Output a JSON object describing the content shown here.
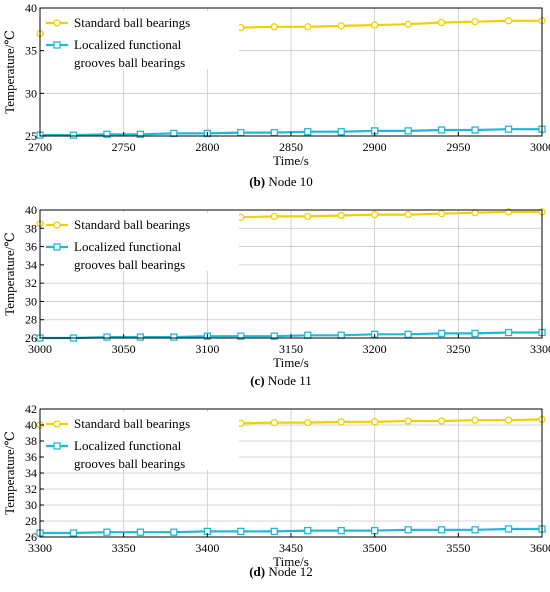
{
  "panels": [
    {
      "caption_prefix": "(b)",
      "caption_text": "Node 10",
      "chart_data": {
        "type": "line",
        "xlabel": "Time/s",
        "ylabel": "Temperature/℃",
        "xlim": [
          2700,
          3000
        ],
        "ylim": [
          25,
          40
        ],
        "xticks": [
          2700,
          2750,
          2800,
          2850,
          2900,
          2950,
          3000
        ],
        "yticks": [
          25,
          30,
          35,
          40
        ],
        "grid": true,
        "legend_position": "top-left",
        "series": [
          {
            "name": "Standard ball bearings",
            "color": "#f0d000",
            "marker": "circle",
            "x": [
              2700,
              2720,
              2740,
              2760,
              2780,
              2800,
              2820,
              2840,
              2860,
              2880,
              2900,
              2920,
              2940,
              2960,
              2980,
              3000
            ],
            "y": [
              37.0,
              37.1,
              37.2,
              37.3,
              37.4,
              37.6,
              37.7,
              37.8,
              37.8,
              37.9,
              38.0,
              38.1,
              38.3,
              38.4,
              38.5,
              38.5
            ]
          },
          {
            "name": "Localized  functional grooves ball bearings",
            "name_line1": "Localized  functional",
            "name_line2": "grooves ball bearings",
            "color": "#20b8d8",
            "marker": "square",
            "x": [
              2700,
              2720,
              2740,
              2760,
              2780,
              2800,
              2820,
              2840,
              2860,
              2880,
              2900,
              2920,
              2940,
              2960,
              2980,
              3000
            ],
            "y": [
              25.1,
              25.1,
              25.2,
              25.2,
              25.3,
              25.3,
              25.4,
              25.4,
              25.5,
              25.5,
              25.6,
              25.6,
              25.7,
              25.7,
              25.8,
              25.8
            ]
          }
        ]
      }
    },
    {
      "caption_prefix": "(c)",
      "caption_text": "Node 11",
      "chart_data": {
        "type": "line",
        "xlabel": "Time/s",
        "ylabel": "Temperature/℃",
        "xlim": [
          3000,
          3300
        ],
        "ylim": [
          26,
          40
        ],
        "xticks": [
          3000,
          3050,
          3100,
          3150,
          3200,
          3250,
          3300
        ],
        "yticks": [
          26,
          28,
          30,
          32,
          34,
          36,
          38,
          40
        ],
        "grid": true,
        "legend_position": "top-left",
        "series": [
          {
            "name": "Standard ball bearings",
            "color": "#f0d000",
            "marker": "circle",
            "x": [
              3000,
              3020,
              3040,
              3060,
              3080,
              3100,
              3120,
              3140,
              3160,
              3180,
              3200,
              3220,
              3240,
              3260,
              3280,
              3300
            ],
            "y": [
              38.5,
              38.6,
              38.7,
              38.9,
              39.0,
              39.1,
              39.2,
              39.3,
              39.3,
              39.4,
              39.5,
              39.5,
              39.6,
              39.7,
              39.8,
              39.8
            ]
          },
          {
            "name": "Localized  functional grooves ball bearings",
            "name_line1": "Localized  functional",
            "name_line2": "grooves ball bearings",
            "color": "#20b8d8",
            "marker": "square",
            "x": [
              3000,
              3020,
              3040,
              3060,
              3080,
              3100,
              3120,
              3140,
              3160,
              3180,
              3200,
              3220,
              3240,
              3260,
              3280,
              3300
            ],
            "y": [
              26.0,
              26.0,
              26.1,
              26.1,
              26.1,
              26.2,
              26.2,
              26.2,
              26.3,
              26.3,
              26.4,
              26.4,
              26.5,
              26.5,
              26.6,
              26.6
            ]
          }
        ]
      }
    },
    {
      "caption_prefix": "(d)",
      "caption_text": "Node 12",
      "chart_data": {
        "type": "line",
        "xlabel": "Time/s",
        "ylabel": "Temperature/℃",
        "xlim": [
          3300,
          3600
        ],
        "ylim": [
          26,
          42
        ],
        "xticks": [
          3300,
          3350,
          3400,
          3450,
          3500,
          3550,
          3600
        ],
        "yticks": [
          26,
          28,
          30,
          32,
          34,
          36,
          38,
          40,
          42
        ],
        "grid": true,
        "legend_position": "top-left",
        "series": [
          {
            "name": "Standard ball bearings",
            "color": "#f0d000",
            "marker": "circle",
            "x": [
              3300,
              3320,
              3340,
              3360,
              3380,
              3400,
              3420,
              3440,
              3460,
              3480,
              3500,
              3520,
              3540,
              3560,
              3580,
              3600
            ],
            "y": [
              40.0,
              40.0,
              40.1,
              40.1,
              40.1,
              40.2,
              40.2,
              40.3,
              40.3,
              40.4,
              40.4,
              40.5,
              40.5,
              40.6,
              40.6,
              40.7
            ]
          },
          {
            "name": "Localized  functional grooves ball bearings",
            "name_line1": "Localized  functional",
            "name_line2": "grooves ball bearings",
            "color": "#20b8d8",
            "marker": "square",
            "x": [
              3300,
              3320,
              3340,
              3360,
              3380,
              3400,
              3420,
              3440,
              3460,
              3480,
              3500,
              3520,
              3540,
              3560,
              3580,
              3600
            ],
            "y": [
              26.5,
              26.5,
              26.6,
              26.6,
              26.6,
              26.7,
              26.7,
              26.7,
              26.8,
              26.8,
              26.8,
              26.9,
              26.9,
              26.9,
              27.0,
              27.0
            ]
          }
        ]
      }
    }
  ]
}
